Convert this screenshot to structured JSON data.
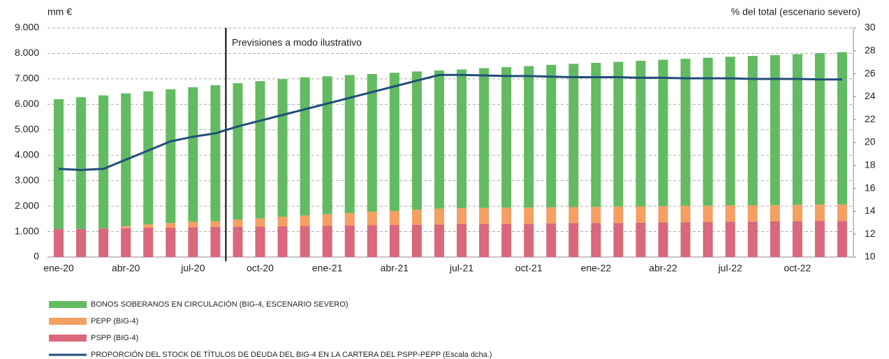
{
  "chart_data": {
    "type": "bar",
    "stacked": true,
    "ylabel": "mm €",
    "y2label": "% del total (escenario severo)",
    "annotation": "Previsiones a modo ilustrativo",
    "categories": [
      "ene-20",
      null,
      null,
      "abr-20",
      null,
      null,
      "jul-20",
      null,
      null,
      "oct-20",
      null,
      null,
      "ene-21",
      null,
      null,
      "abr-21",
      null,
      null,
      "jul-21",
      null,
      null,
      "oct-21",
      null,
      null,
      "ene-22",
      null,
      null,
      "abr-22",
      null,
      null,
      "jul-22",
      null,
      null,
      "oct-22",
      null,
      null
    ],
    "ylim": [
      0,
      9000
    ],
    "yticks": [
      0,
      {
        "value": 1000,
        "label": "1.000"
      },
      {
        "value": 2000,
        "label": "2.000"
      },
      {
        "value": 3000,
        "label": "3.000"
      },
      {
        "value": 4000,
        "label": "4.000"
      },
      {
        "value": 5000,
        "label": "5.000"
      },
      {
        "value": 6000,
        "label": "6.000"
      },
      {
        "value": 7000,
        "label": "7.000"
      },
      {
        "value": 8000,
        "label": "8.000"
      },
      {
        "value": 9000,
        "label": "9.000"
      }
    ],
    "y2lim": [
      10,
      30
    ],
    "y2ticks": [
      10,
      12,
      14,
      16,
      18,
      20,
      22,
      24,
      26,
      28,
      30
    ],
    "grid": true,
    "series": [
      {
        "name": "PSPP (BIG-4)",
        "color": "#d9687a",
        "values": [
          1100,
          1100,
          1120,
          1130,
          1150,
          1160,
          1170,
          1180,
          1190,
          1200,
          1210,
          1220,
          1230,
          1240,
          1250,
          1260,
          1270,
          1280,
          1290,
          1300,
          1310,
          1310,
          1320,
          1330,
          1340,
          1340,
          1350,
          1360,
          1370,
          1380,
          1390,
          1390,
          1400,
          1410,
          1420,
          1420
        ]
      },
      {
        "name": "PEPP (BIG-4)",
        "color": "#f4a063",
        "values": [
          0,
          0,
          0,
          90,
          130,
          180,
          210,
          230,
          280,
          320,
          370,
          410,
          460,
          490,
          530,
          550,
          590,
          620,
          630,
          630,
          630,
          630,
          630,
          630,
          630,
          640,
          640,
          640,
          640,
          640,
          640,
          640,
          640,
          640,
          640,
          640
        ]
      },
      {
        "name": "BONOS SOBERANOS EN CIRCULACIÓN (BIG-4, ESCENARIO SEVERO)",
        "color": "#62bb62",
        "values": [
          5100,
          5180,
          5230,
          5210,
          5230,
          5250,
          5290,
          5340,
          5360,
          5390,
          5410,
          5430,
          5410,
          5420,
          5410,
          5430,
          5430,
          5430,
          5450,
          5490,
          5520,
          5560,
          5600,
          5630,
          5660,
          5690,
          5720,
          5750,
          5780,
          5810,
          5840,
          5870,
          5890,
          5920,
          5950,
          5990
        ]
      },
      {
        "name": "PROPORCIÓN DEL STOCK DE TÍTULOS DE DEUDA DEL BIG-4 EN LA CARTERA DEL PSPP-PEPP (Escala dcha.)",
        "color": "#1f4e79",
        "type": "line",
        "axis": "y2",
        "values": [
          17.7,
          17.6,
          17.7,
          18.5,
          19.3,
          20.1,
          20.5,
          20.8,
          21.4,
          21.9,
          22.4,
          22.9,
          23.4,
          23.9,
          24.4,
          24.9,
          25.4,
          25.9,
          25.9,
          25.85,
          25.8,
          25.8,
          25.75,
          25.7,
          25.7,
          25.7,
          25.65,
          25.65,
          25.6,
          25.6,
          25.6,
          25.55,
          25.55,
          25.55,
          25.5,
          25.5
        ]
      }
    ]
  }
}
